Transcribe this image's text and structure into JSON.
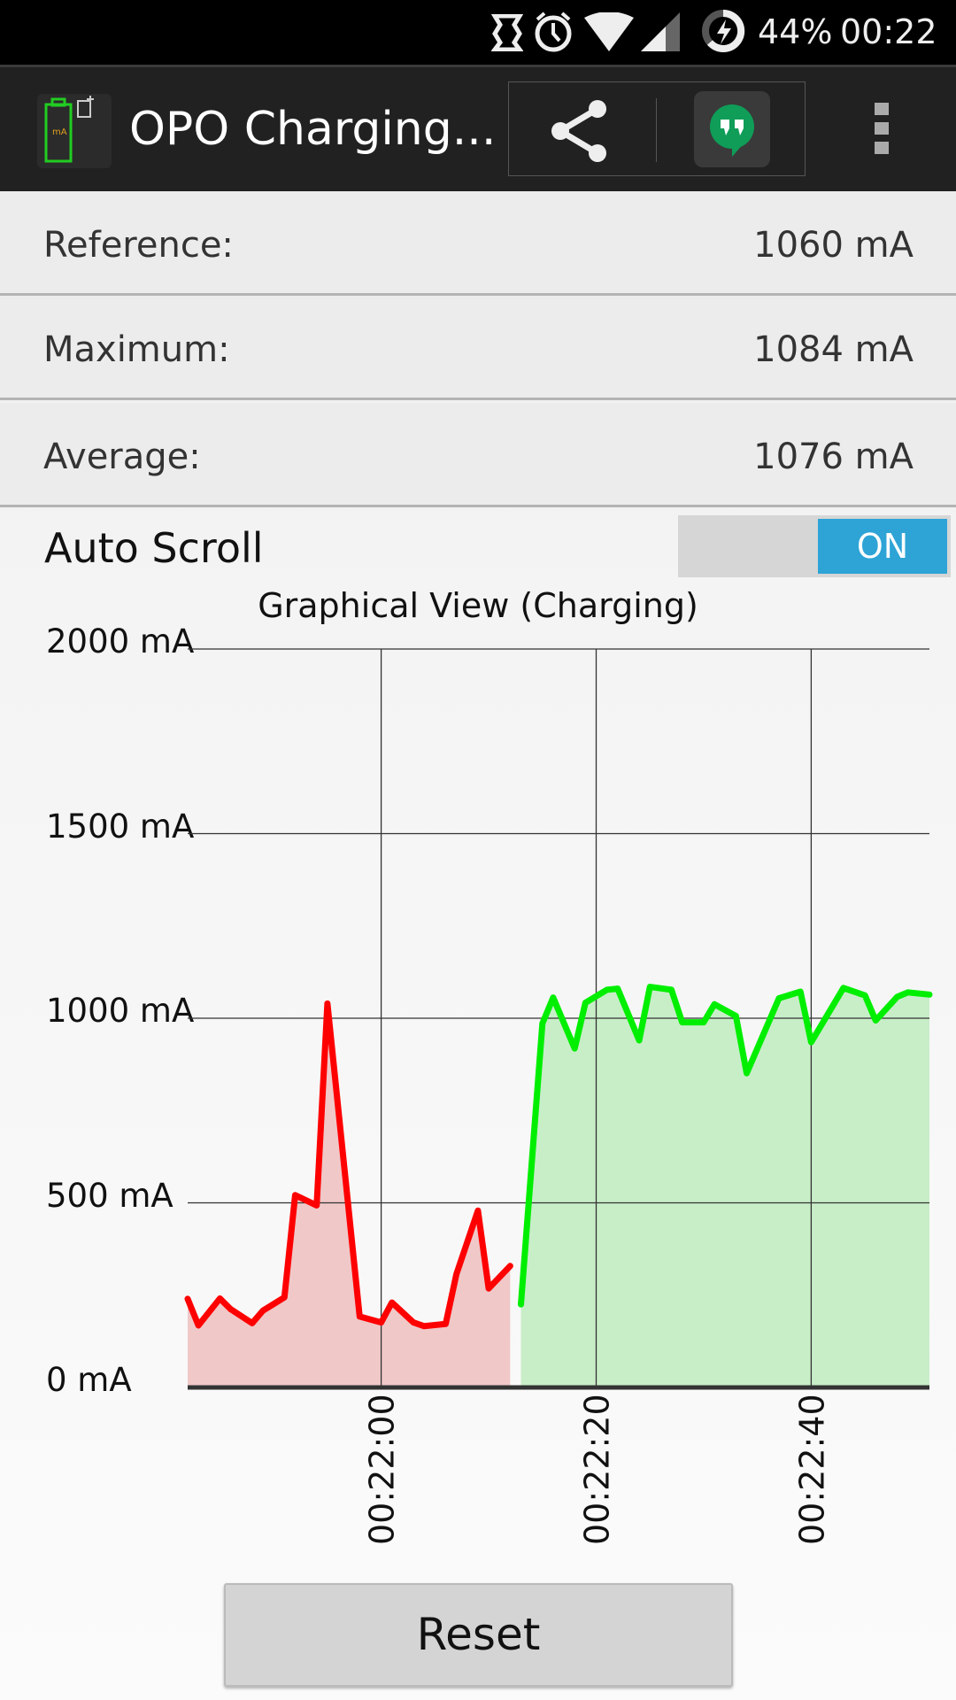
{
  "status_bar": {
    "battery": "44%",
    "time": "00:22",
    "icons": [
      "nfc-icon",
      "alarm-icon",
      "wifi-icon",
      "signal-icon",
      "battery-charging-icon"
    ]
  },
  "toolbar": {
    "title": "OPO Charging...",
    "icons": [
      "app-logo-icon",
      "share-icon",
      "hangouts-icon",
      "overflow-menu-icon"
    ]
  },
  "stats": [
    {
      "label": "Reference:",
      "value": "1060 mA"
    },
    {
      "label": "Maximum:",
      "value": "1084 mA"
    },
    {
      "label": "Average:",
      "value": "1076 mA"
    }
  ],
  "auto_scroll": {
    "label": "Auto Scroll",
    "state": "ON",
    "accent": "#2ea4d6"
  },
  "reset_label": "Reset",
  "chart_data": {
    "type": "area",
    "title": "Graphical View (Charging)",
    "xlabel": "",
    "ylabel": "",
    "ylim": [
      0,
      2000
    ],
    "xlim": [
      "00:21:42",
      "00:22:51"
    ],
    "y_ticks": [
      "0 mA",
      "500 mA",
      "1000 mA",
      "1500 mA",
      "2000 mA"
    ],
    "y_tick_values": [
      0,
      500,
      1000,
      1500,
      2000
    ],
    "x_ticks": [
      "00:22:00",
      "00:22:20",
      "00:22:40"
    ],
    "grid": true,
    "series": [
      {
        "color": "#ff0000",
        "fill": "#f0c8c8",
        "x": [
          "00:21:42",
          "00:21:43",
          "00:21:45",
          "00:21:46",
          "00:21:48",
          "00:21:49",
          "00:21:51",
          "00:21:52",
          "00:21:54",
          "00:21:55",
          "00:21:58",
          "00:22:00",
          "00:22:01",
          "00:22:03",
          "00:22:04",
          "00:22:06",
          "00:22:07",
          "00:22:09",
          "00:22:10",
          "00:22:12"
        ],
        "values": [
          240,
          168,
          241,
          212,
          174,
          208,
          244,
          521,
          493,
          1040,
          192,
          176,
          230,
          176,
          166,
          172,
          307,
          479,
          268,
          329
        ]
      },
      {
        "color": "#00ee00",
        "fill": "#c8eec8",
        "x": [
          "00:22:13",
          "00:22:15",
          "00:22:16",
          "00:22:18",
          "00:22:19",
          "00:22:21",
          "00:22:22",
          "00:22:24",
          "00:22:25",
          "00:22:27",
          "00:22:28",
          "00:22:30",
          "00:22:31",
          "00:22:33",
          "00:22:34",
          "00:22:37",
          "00:22:39",
          "00:22:40",
          "00:22:43",
          "00:22:45",
          "00:22:46",
          "00:22:48",
          "00:22:49",
          "00:22:51"
        ],
        "values": [
          225,
          986,
          1056,
          918,
          1042,
          1077,
          1080,
          940,
          1085,
          1077,
          989,
          989,
          1038,
          1006,
          851,
          1054,
          1072,
          935,
          1082,
          1062,
          994,
          1058,
          1070,
          1064
        ]
      }
    ]
  }
}
